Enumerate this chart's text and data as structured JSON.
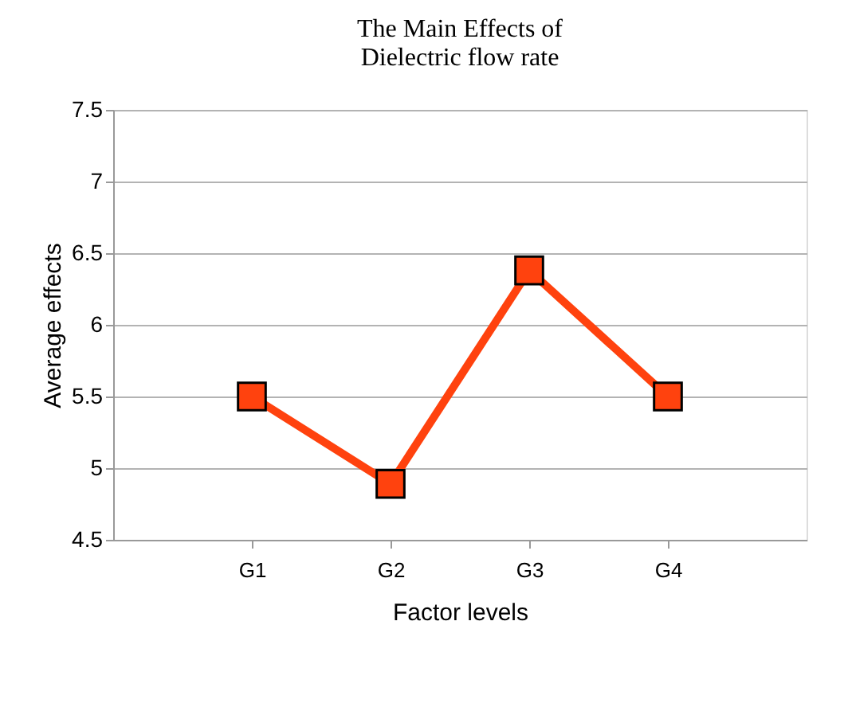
{
  "chart_data": {
    "type": "line",
    "title": [
      "The Main Effects of",
      "Dielectric flow rate"
    ],
    "xlabel": "Factor levels",
    "ylabel": "Average effects",
    "categories": [
      "G1",
      "G2",
      "G3",
      "G4"
    ],
    "series": [
      {
        "color": "#ff420e",
        "values": [
          5.5,
          4.89,
          6.38,
          5.5
        ]
      }
    ],
    "ylim": [
      4.5,
      7.5
    ],
    "yticks": [
      4.5,
      5,
      5.5,
      6,
      6.5,
      7,
      7.5
    ],
    "grid": "y",
    "marker": "square",
    "line_style": "solid"
  }
}
